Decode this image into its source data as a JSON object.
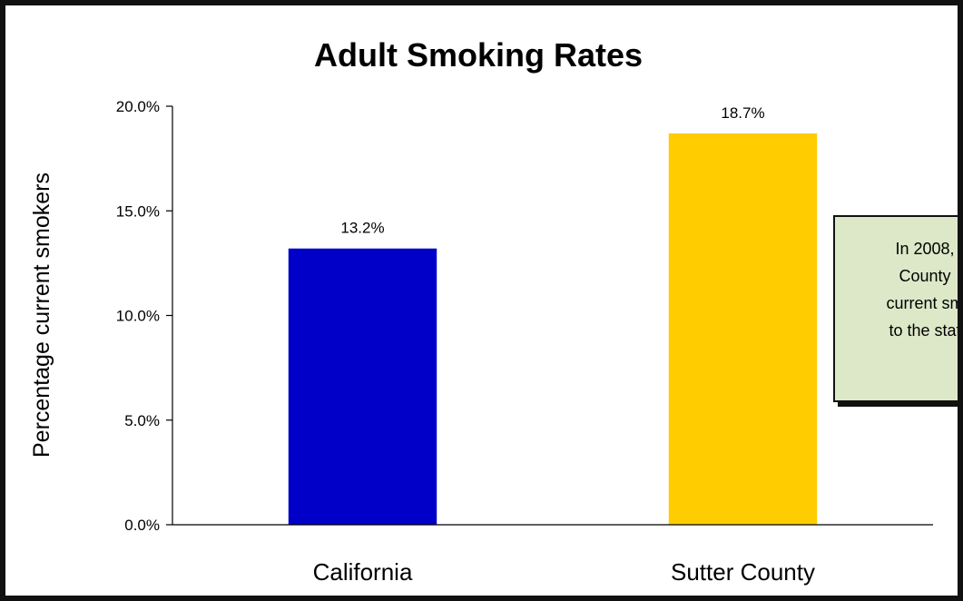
{
  "chart_data": {
    "type": "bar",
    "title": "Adult Smoking Rates",
    "ylabel": "Percentage current smokers",
    "xlabel": "",
    "categories": [
      "California",
      "Sutter County"
    ],
    "values": [
      13.2,
      18.7
    ],
    "value_labels": [
      "13.2%",
      "18.7%"
    ],
    "bar_colors": [
      "#0000c8",
      "#ffcc00"
    ],
    "ylim": [
      0,
      20
    ],
    "y_ticks": [
      0,
      5,
      10,
      15,
      20
    ],
    "y_tick_labels": [
      "0.0%",
      "5.0%",
      "10.0%",
      "15.0%",
      "20.0%"
    ],
    "grid": false,
    "legend": "none"
  },
  "callout": {
    "lines": [
      "In 2008,",
      "County",
      "current sm",
      "to the stat"
    ]
  }
}
